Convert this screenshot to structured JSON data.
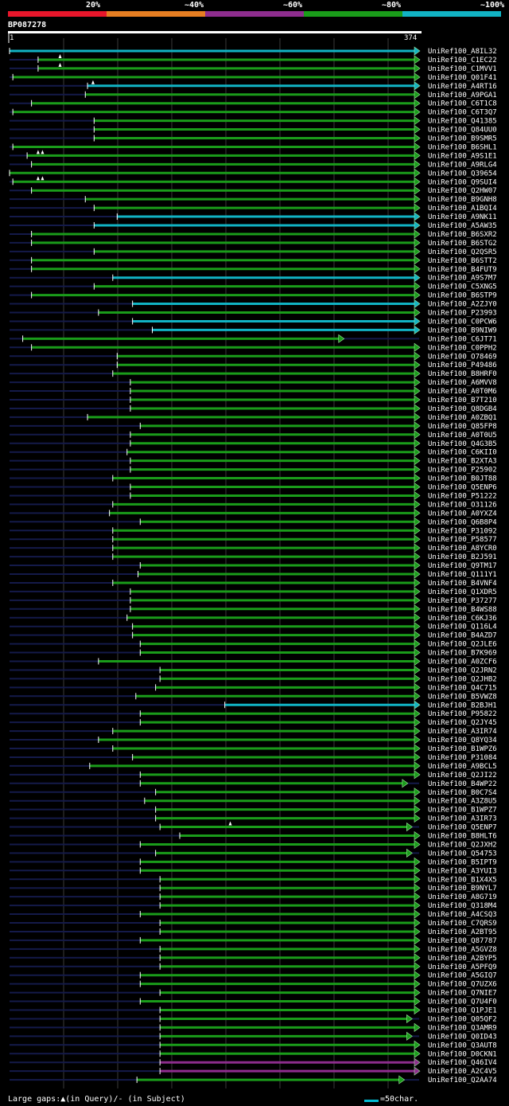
{
  "chart_data": {
    "type": "alignment-overview",
    "query_name": "BP087278",
    "query_length": 374,
    "start_label": "1",
    "end_label": "374",
    "legend": [
      {
        "label": "20%",
        "color": "#e8162b"
      },
      {
        "label": "~40%",
        "color": "#e67e22"
      },
      {
        "label": "~60%",
        "color": "#8e2d8e"
      },
      {
        "label": "~80%",
        "color": "#1a9c1a"
      },
      {
        "label": "~100%",
        "color": "#11b3c4"
      }
    ],
    "hits": [
      {
        "name": "UniRef100_A8IL32",
        "start": 1,
        "end": 374,
        "color": "#11b3c4",
        "gaps": []
      },
      {
        "name": "UniRef100_C1EC22",
        "start": 27,
        "end": 374,
        "color": "#1a9c1a",
        "gaps": [
          47
        ]
      },
      {
        "name": "UniRef100_C1MVV1",
        "start": 27,
        "end": 374,
        "color": "#1a9c1a",
        "gaps": [
          47
        ]
      },
      {
        "name": "UniRef100_Q01F41",
        "start": 4,
        "end": 374,
        "color": "#1a9c1a",
        "gaps": []
      },
      {
        "name": "UniRef100_A4RT16",
        "start": 72,
        "end": 374,
        "color": "#11b3c4",
        "gaps": [
          77
        ]
      },
      {
        "name": "UniRef100_A9PGA1",
        "start": 70,
        "end": 374,
        "color": "#1a9c1a",
        "gaps": []
      },
      {
        "name": "UniRef100_C6T1C8",
        "start": 21,
        "end": 374,
        "color": "#1a9c1a",
        "gaps": []
      },
      {
        "name": "UniRef100_C6T3Q7",
        "start": 4,
        "end": 374,
        "color": "#1a9c1a",
        "gaps": []
      },
      {
        "name": "UniRef100_Q41385",
        "start": 78,
        "end": 374,
        "color": "#1a9c1a",
        "gaps": []
      },
      {
        "name": "UniRef100_Q84UU0",
        "start": 78,
        "end": 374,
        "color": "#1a9c1a",
        "gaps": []
      },
      {
        "name": "UniRef100_B9SMR5",
        "start": 78,
        "end": 374,
        "color": "#1a9c1a",
        "gaps": []
      },
      {
        "name": "UniRef100_B6SHL1",
        "start": 4,
        "end": 374,
        "color": "#1a9c1a",
        "gaps": []
      },
      {
        "name": "UniRef100_A9S1E1",
        "start": 17,
        "end": 374,
        "color": "#1a9c1a",
        "gaps": [
          27,
          31
        ]
      },
      {
        "name": "UniRef100_A9RLG4",
        "start": 21,
        "end": 374,
        "color": "#1a9c1a",
        "gaps": []
      },
      {
        "name": "UniRef100_Q39654",
        "start": 1,
        "end": 374,
        "color": "#1a9c1a",
        "gaps": []
      },
      {
        "name": "UniRef100_Q9SUI4",
        "start": 4,
        "end": 374,
        "color": "#1a9c1a",
        "gaps": [
          27,
          31
        ]
      },
      {
        "name": "UniRef100_Q2HW07",
        "start": 21,
        "end": 374,
        "color": "#1a9c1a",
        "gaps": []
      },
      {
        "name": "UniRef100_B9GNH8",
        "start": 70,
        "end": 374,
        "color": "#1a9c1a",
        "gaps": []
      },
      {
        "name": "UniRef100_A1BQI4",
        "start": 78,
        "end": 374,
        "color": "#1a9c1a",
        "gaps": []
      },
      {
        "name": "UniRef100_A9NK11",
        "start": 99,
        "end": 374,
        "color": "#11b3c4",
        "gaps": []
      },
      {
        "name": "UniRef100_A5AW35",
        "start": 78,
        "end": 374,
        "color": "#11b3c4",
        "gaps": []
      },
      {
        "name": "UniRef100_B6SXR2",
        "start": 21,
        "end": 374,
        "color": "#1a9c1a",
        "gaps": []
      },
      {
        "name": "UniRef100_B6STG2",
        "start": 21,
        "end": 374,
        "color": "#1a9c1a",
        "gaps": []
      },
      {
        "name": "UniRef100_Q2QSR5",
        "start": 78,
        "end": 374,
        "color": "#1a9c1a",
        "gaps": []
      },
      {
        "name": "UniRef100_B6STT2",
        "start": 21,
        "end": 374,
        "color": "#1a9c1a",
        "gaps": []
      },
      {
        "name": "UniRef100_B4FUT9",
        "start": 21,
        "end": 374,
        "color": "#1a9c1a",
        "gaps": []
      },
      {
        "name": "UniRef100_A9S7M7",
        "start": 95,
        "end": 374,
        "color": "#11b3c4",
        "gaps": []
      },
      {
        "name": "UniRef100_C5XNG5",
        "start": 78,
        "end": 374,
        "color": "#1a9c1a",
        "gaps": []
      },
      {
        "name": "UniRef100_B6STP9",
        "start": 21,
        "end": 374,
        "color": "#1a9c1a",
        "gaps": []
      },
      {
        "name": "UniRef100_A2ZJY0",
        "start": 113,
        "end": 374,
        "color": "#11b3c4",
        "gaps": []
      },
      {
        "name": "UniRef100_P23993",
        "start": 82,
        "end": 374,
        "color": "#1a9c1a",
        "gaps": []
      },
      {
        "name": "UniRef100_C0PCW6",
        "start": 113,
        "end": 374,
        "color": "#11b3c4",
        "gaps": []
      },
      {
        "name": "UniRef100_B9NIW9",
        "start": 131,
        "end": 374,
        "color": "#11b3c4",
        "gaps": []
      },
      {
        "name": "UniRef100_C6JT71",
        "start": 13,
        "end": 305,
        "color": "#1a9c1a",
        "gaps": []
      },
      {
        "name": "UniRef100_C0PPH2",
        "start": 21,
        "end": 374,
        "color": "#1a9c1a",
        "gaps": []
      },
      {
        "name": "UniRef100_O78469",
        "start": 99,
        "end": 374,
        "color": "#1a9c1a",
        "gaps": []
      },
      {
        "name": "UniRef100_P49486",
        "start": 99,
        "end": 374,
        "color": "#1a9c1a",
        "gaps": []
      },
      {
        "name": "UniRef100_B8HRF0",
        "start": 95,
        "end": 374,
        "color": "#1a9c1a",
        "gaps": []
      },
      {
        "name": "UniRef100_A6MVV8",
        "start": 111,
        "end": 374,
        "color": "#1a9c1a",
        "gaps": []
      },
      {
        "name": "UniRef100_A0T0M6",
        "start": 111,
        "end": 374,
        "color": "#1a9c1a",
        "gaps": []
      },
      {
        "name": "UniRef100_B7T210",
        "start": 111,
        "end": 374,
        "color": "#1a9c1a",
        "gaps": []
      },
      {
        "name": "UniRef100_Q8DGB4",
        "start": 111,
        "end": 374,
        "color": "#1a9c1a",
        "gaps": []
      },
      {
        "name": "UniRef100_A0ZBQ1",
        "start": 72,
        "end": 374,
        "color": "#1a9c1a",
        "gaps": []
      },
      {
        "name": "UniRef100_Q85FP8",
        "start": 120,
        "end": 374,
        "color": "#1a9c1a",
        "gaps": []
      },
      {
        "name": "UniRef100_A0T0U5",
        "start": 111,
        "end": 374,
        "color": "#1a9c1a",
        "gaps": []
      },
      {
        "name": "UniRef100_Q4G3B5",
        "start": 111,
        "end": 374,
        "color": "#1a9c1a",
        "gaps": []
      },
      {
        "name": "UniRef100_C6KII0",
        "start": 108,
        "end": 374,
        "color": "#1a9c1a",
        "gaps": []
      },
      {
        "name": "UniRef100_B2XTA3",
        "start": 111,
        "end": 374,
        "color": "#1a9c1a",
        "gaps": []
      },
      {
        "name": "UniRef100_P25902",
        "start": 111,
        "end": 374,
        "color": "#1a9c1a",
        "gaps": []
      },
      {
        "name": "UniRef100_B0JT88",
        "start": 95,
        "end": 374,
        "color": "#1a9c1a",
        "gaps": []
      },
      {
        "name": "UniRef100_Q5ENP6",
        "start": 111,
        "end": 374,
        "color": "#1a9c1a",
        "gaps": []
      },
      {
        "name": "UniRef100_P51222",
        "start": 111,
        "end": 374,
        "color": "#1a9c1a",
        "gaps": []
      },
      {
        "name": "UniRef100_O31126",
        "start": 95,
        "end": 374,
        "color": "#1a9c1a",
        "gaps": []
      },
      {
        "name": "UniRef100_A0YXZ4",
        "start": 92,
        "end": 374,
        "color": "#1a9c1a",
        "gaps": []
      },
      {
        "name": "UniRef100_Q6B8P4",
        "start": 120,
        "end": 374,
        "color": "#1a9c1a",
        "gaps": []
      },
      {
        "name": "UniRef100_P31092",
        "start": 95,
        "end": 374,
        "color": "#1a9c1a",
        "gaps": []
      },
      {
        "name": "UniRef100_P58577",
        "start": 95,
        "end": 374,
        "color": "#1a9c1a",
        "gaps": []
      },
      {
        "name": "UniRef100_A8YCR0",
        "start": 95,
        "end": 374,
        "color": "#1a9c1a",
        "gaps": []
      },
      {
        "name": "UniRef100_B2J591",
        "start": 95,
        "end": 374,
        "color": "#1a9c1a",
        "gaps": []
      },
      {
        "name": "UniRef100_Q9TM17",
        "start": 120,
        "end": 374,
        "color": "#1a9c1a",
        "gaps": []
      },
      {
        "name": "UniRef100_Q111Y1",
        "start": 118,
        "end": 374,
        "color": "#1a9c1a",
        "gaps": []
      },
      {
        "name": "UniRef100_B4VNF4",
        "start": 95,
        "end": 374,
        "color": "#1a9c1a",
        "gaps": []
      },
      {
        "name": "UniRef100_Q1XDR5",
        "start": 111,
        "end": 374,
        "color": "#1a9c1a",
        "gaps": []
      },
      {
        "name": "UniRef100_P37277",
        "start": 111,
        "end": 374,
        "color": "#1a9c1a",
        "gaps": []
      },
      {
        "name": "UniRef100_B4WS88",
        "start": 111,
        "end": 374,
        "color": "#1a9c1a",
        "gaps": []
      },
      {
        "name": "UniRef100_C6KJ36",
        "start": 108,
        "end": 374,
        "color": "#1a9c1a",
        "gaps": []
      },
      {
        "name": "UniRef100_Q116L4",
        "start": 113,
        "end": 374,
        "color": "#1a9c1a",
        "gaps": []
      },
      {
        "name": "UniRef100_B4AZD7",
        "start": 113,
        "end": 374,
        "color": "#1a9c1a",
        "gaps": []
      },
      {
        "name": "UniRef100_Q2JLE6",
        "start": 120,
        "end": 374,
        "color": "#1a9c1a",
        "gaps": []
      },
      {
        "name": "UniRef100_B7K969",
        "start": 120,
        "end": 374,
        "color": "#1a9c1a",
        "gaps": []
      },
      {
        "name": "UniRef100_A0ZCF6",
        "start": 82,
        "end": 374,
        "color": "#1a9c1a",
        "gaps": []
      },
      {
        "name": "UniRef100_Q2JRN2",
        "start": 138,
        "end": 374,
        "color": "#1a9c1a",
        "gaps": []
      },
      {
        "name": "UniRef100_Q2JHB2",
        "start": 138,
        "end": 374,
        "color": "#1a9c1a",
        "gaps": []
      },
      {
        "name": "UniRef100_Q4C715",
        "start": 134,
        "end": 374,
        "color": "#1a9c1a",
        "gaps": []
      },
      {
        "name": "UniRef100_B5VWZ8",
        "start": 116,
        "end": 374,
        "color": "#1a9c1a",
        "gaps": []
      },
      {
        "name": "UniRef100_B2BJH1",
        "start": 197,
        "end": 374,
        "color": "#11b3c4",
        "gaps": []
      },
      {
        "name": "UniRef100_P95822",
        "start": 120,
        "end": 374,
        "color": "#1a9c1a",
        "gaps": []
      },
      {
        "name": "UniRef100_Q2JY45",
        "start": 120,
        "end": 374,
        "color": "#1a9c1a",
        "gaps": []
      },
      {
        "name": "UniRef100_A3IR74",
        "start": 95,
        "end": 374,
        "color": "#1a9c1a",
        "gaps": []
      },
      {
        "name": "UniRef100_Q8YQ34",
        "start": 82,
        "end": 374,
        "color": "#1a9c1a",
        "gaps": []
      },
      {
        "name": "UniRef100_B1WPZ6",
        "start": 95,
        "end": 374,
        "color": "#1a9c1a",
        "gaps": []
      },
      {
        "name": "UniRef100_P31084",
        "start": 113,
        "end": 374,
        "color": "#1a9c1a",
        "gaps": []
      },
      {
        "name": "UniRef100_A9BCL5",
        "start": 74,
        "end": 374,
        "color": "#1a9c1a",
        "gaps": []
      },
      {
        "name": "UniRef100_Q2JI22",
        "start": 120,
        "end": 374,
        "color": "#1a9c1a",
        "gaps": []
      },
      {
        "name": "UniRef100_B4WP22",
        "start": 120,
        "end": 363,
        "color": "#1a9c1a",
        "gaps": []
      },
      {
        "name": "UniRef100_B0C7S4",
        "start": 134,
        "end": 374,
        "color": "#1a9c1a",
        "gaps": []
      },
      {
        "name": "UniRef100_A3Z8U5",
        "start": 124,
        "end": 374,
        "color": "#1a9c1a",
        "gaps": []
      },
      {
        "name": "UniRef100_B1WPZ7",
        "start": 134,
        "end": 374,
        "color": "#1a9c1a",
        "gaps": []
      },
      {
        "name": "UniRef100_A3IR73",
        "start": 134,
        "end": 374,
        "color": "#1a9c1a",
        "gaps": []
      },
      {
        "name": "UniRef100_Q5ENP7",
        "start": 138,
        "end": 367,
        "color": "#1a9c1a",
        "gaps": [
          202
        ]
      },
      {
        "name": "UniRef100_B8HLT6",
        "start": 156,
        "end": 374,
        "color": "#1a9c1a",
        "gaps": []
      },
      {
        "name": "UniRef100_Q2JXH2",
        "start": 120,
        "end": 374,
        "color": "#1a9c1a",
        "gaps": []
      },
      {
        "name": "UniRef100_Q54753",
        "start": 134,
        "end": 367,
        "color": "#1a9c1a",
        "gaps": []
      },
      {
        "name": "UniRef100_B5IPT9",
        "start": 120,
        "end": 374,
        "color": "#1a9c1a",
        "gaps": []
      },
      {
        "name": "UniRef100_A3YUI3",
        "start": 120,
        "end": 374,
        "color": "#1a9c1a",
        "gaps": []
      },
      {
        "name": "UniRef100_B1X4X5",
        "start": 138,
        "end": 374,
        "color": "#1a9c1a",
        "gaps": []
      },
      {
        "name": "UniRef100_B9NYL7",
        "start": 138,
        "end": 374,
        "color": "#1a9c1a",
        "gaps": []
      },
      {
        "name": "UniRef100_A8G719",
        "start": 138,
        "end": 374,
        "color": "#1a9c1a",
        "gaps": []
      },
      {
        "name": "UniRef100_Q318M4",
        "start": 138,
        "end": 374,
        "color": "#1a9c1a",
        "gaps": []
      },
      {
        "name": "UniRef100_A4CSQ3",
        "start": 120,
        "end": 374,
        "color": "#1a9c1a",
        "gaps": []
      },
      {
        "name": "UniRef100_C7QRS9",
        "start": 138,
        "end": 374,
        "color": "#1a9c1a",
        "gaps": []
      },
      {
        "name": "UniRef100_A2BT95",
        "start": 138,
        "end": 374,
        "color": "#1a9c1a",
        "gaps": []
      },
      {
        "name": "UniRef100_Q87787",
        "start": 120,
        "end": 374,
        "color": "#1a9c1a",
        "gaps": []
      },
      {
        "name": "UniRef100_A5GVZ8",
        "start": 138,
        "end": 374,
        "color": "#1a9c1a",
        "gaps": []
      },
      {
        "name": "UniRef100_A2BYP5",
        "start": 138,
        "end": 374,
        "color": "#1a9c1a",
        "gaps": []
      },
      {
        "name": "UniRef100_A5PFQ9",
        "start": 138,
        "end": 374,
        "color": "#1a9c1a",
        "gaps": []
      },
      {
        "name": "UniRef100_A5GIQ7",
        "start": 120,
        "end": 374,
        "color": "#1a9c1a",
        "gaps": []
      },
      {
        "name": "UniRef100_Q7UZX6",
        "start": 120,
        "end": 374,
        "color": "#1a9c1a",
        "gaps": []
      },
      {
        "name": "UniRef100_Q7NIE7",
        "start": 138,
        "end": 374,
        "color": "#1a9c1a",
        "gaps": []
      },
      {
        "name": "UniRef100_Q7U4F0",
        "start": 120,
        "end": 374,
        "color": "#1a9c1a",
        "gaps": []
      },
      {
        "name": "UniRef100_Q1PJE1",
        "start": 138,
        "end": 374,
        "color": "#1a9c1a",
        "gaps": []
      },
      {
        "name": "UniRef100_Q05QF2",
        "start": 138,
        "end": 367,
        "color": "#1a9c1a",
        "gaps": []
      },
      {
        "name": "UniRef100_Q3AMR9",
        "start": 138,
        "end": 374,
        "color": "#1a9c1a",
        "gaps": []
      },
      {
        "name": "UniRef100_Q0ID43",
        "start": 138,
        "end": 367,
        "color": "#1a9c1a",
        "gaps": []
      },
      {
        "name": "UniRef100_Q3AUT8",
        "start": 138,
        "end": 374,
        "color": "#1a9c1a",
        "gaps": []
      },
      {
        "name": "UniRef100_D0CKN1",
        "start": 138,
        "end": 374,
        "color": "#1a9c1a",
        "gaps": []
      },
      {
        "name": "UniRef100_Q46IV4",
        "start": 138,
        "end": 374,
        "color": "#8e2d8e",
        "gaps": []
      },
      {
        "name": "UniRef100_A2C4V5",
        "start": 138,
        "end": 374,
        "color": "#8e2d8e",
        "gaps": []
      },
      {
        "name": "UniRef100_Q2AA74",
        "start": 117,
        "end": 360,
        "color": "#1a9c1a",
        "gaps": []
      }
    ]
  },
  "footer": {
    "gaps_text": "Large gaps:▲(in Query)/- (in Subject)",
    "scale_text": "=50char."
  }
}
